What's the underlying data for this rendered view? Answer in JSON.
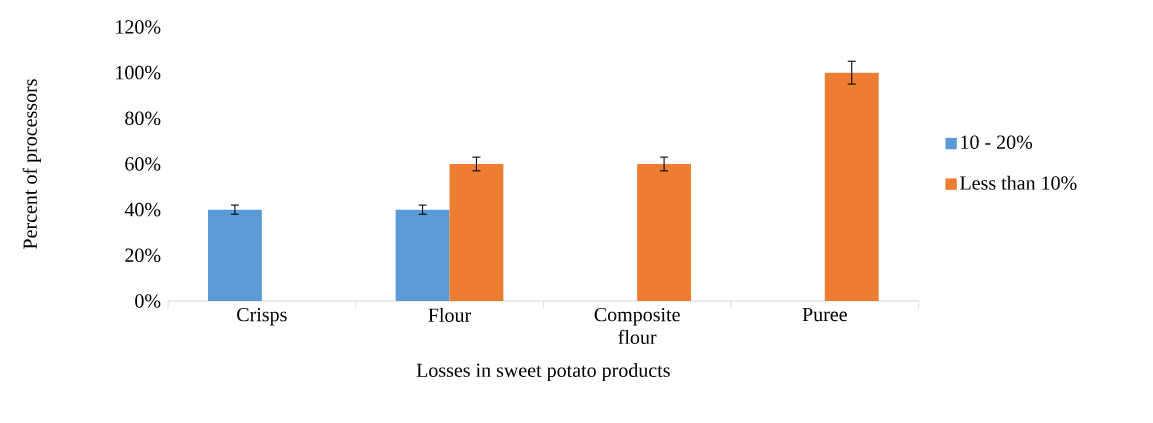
{
  "chart_data": {
    "type": "bar",
    "xlabel": "Losses in sweet potato products",
    "ylabel": "Percent of processors",
    "categories": [
      "Crisps",
      "Flour",
      "Composite flour",
      "Puree"
    ],
    "series": [
      {
        "name": "10 - 20%",
        "color": "#5b9bd5",
        "values": [
          40,
          40,
          0,
          0
        ],
        "errors": [
          2,
          2,
          null,
          null
        ]
      },
      {
        "name": "Less than 10%",
        "color": "#ed7d31",
        "values": [
          0,
          60,
          60,
          100
        ],
        "errors": [
          null,
          3,
          3,
          5
        ]
      }
    ],
    "ylim": [
      0,
      120
    ],
    "yticks": [
      {
        "value": 0,
        "label": "0%"
      },
      {
        "value": 20,
        "label": "20%"
      },
      {
        "value": 40,
        "label": "40%"
      },
      {
        "value": 60,
        "label": "60%"
      },
      {
        "value": 80,
        "label": "80%"
      },
      {
        "value": 100,
        "label": "100%"
      },
      {
        "value": 120,
        "label": "120%"
      }
    ],
    "grid": false,
    "legend": "right"
  }
}
